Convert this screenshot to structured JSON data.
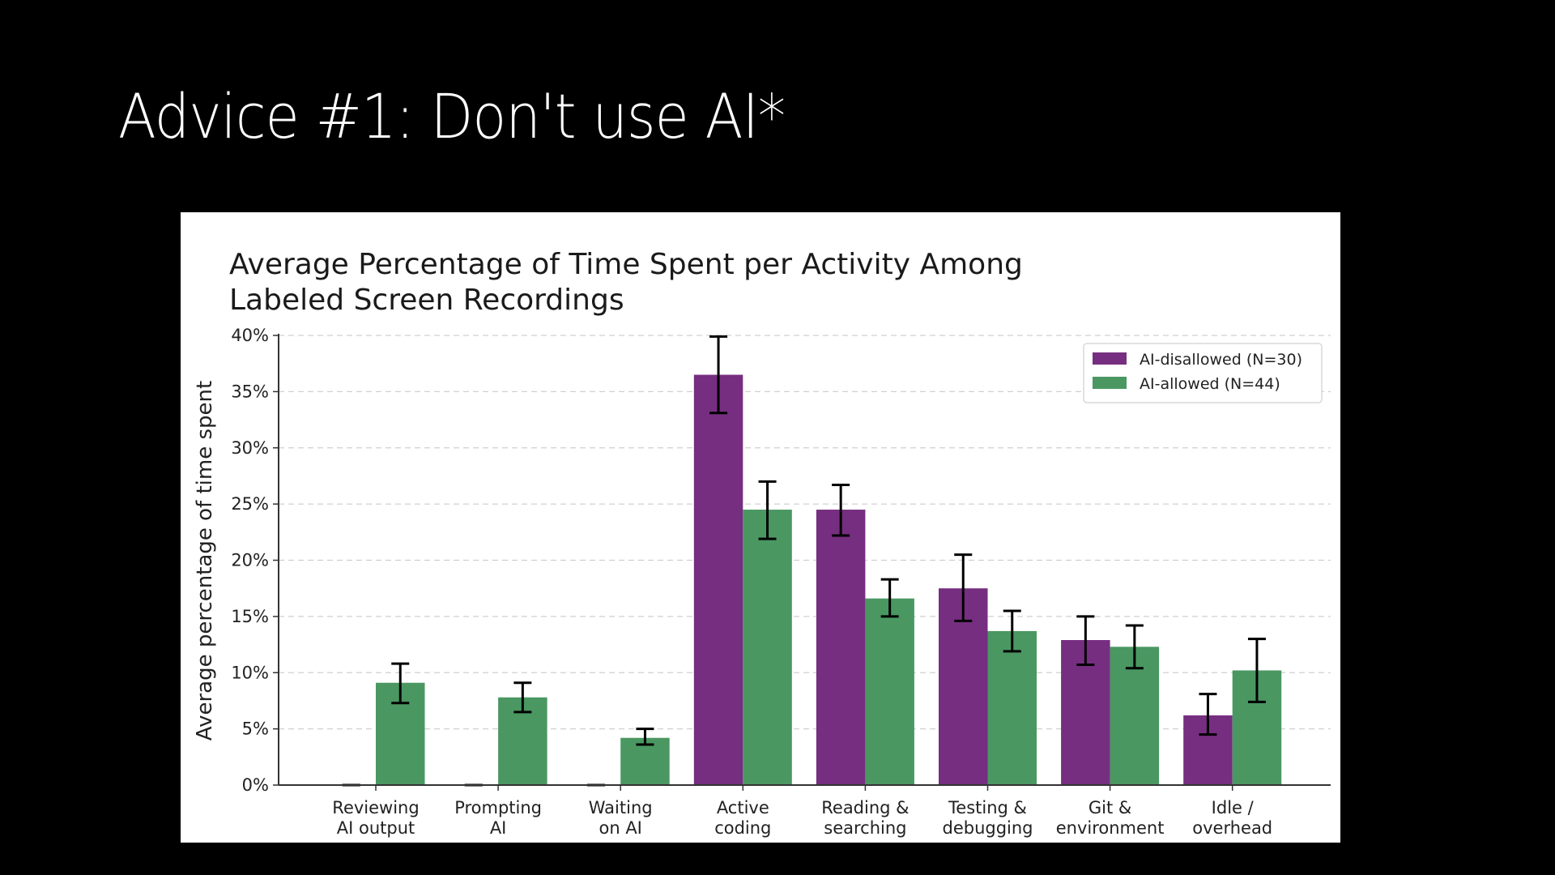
{
  "slide": {
    "title": "Advice #1: Don't use AI*"
  },
  "colors": {
    "background": "#000000",
    "panel": "#ffffff",
    "ai_disallowed": "#762E80",
    "ai_allowed": "#4A9762",
    "error_bar": "#000000",
    "grid": "#d0d0d0"
  },
  "chart_data": {
    "type": "bar",
    "title": "Average Percentage of Time Spent per Activity Among Labeled Screen Recordings",
    "title_lines": [
      "Average Percentage of Time Spent per Activity Among",
      "Labeled Screen Recordings"
    ],
    "xlabel": "",
    "ylabel": "Average percentage of time spent",
    "ylim": [
      0,
      40
    ],
    "yticks": [
      0,
      5,
      10,
      15,
      20,
      25,
      30,
      35,
      40
    ],
    "ytick_labels": [
      "0%",
      "5%",
      "10%",
      "15%",
      "20%",
      "25%",
      "30%",
      "35%",
      "40%"
    ],
    "grid": "horizontal-dashed",
    "legend_position": "top-right",
    "categories": [
      [
        "Reviewing",
        "AI output"
      ],
      [
        "Prompting",
        "AI"
      ],
      [
        "Waiting",
        "on AI"
      ],
      [
        "Active",
        "coding"
      ],
      [
        "Reading &",
        "searching"
      ],
      [
        "Testing &",
        "debugging"
      ],
      [
        "Git &",
        "environment"
      ],
      [
        "Idle /",
        "overhead"
      ]
    ],
    "series": [
      {
        "name": "AI-disallowed (N=30)",
        "color": "#762E80",
        "values": [
          0,
          0,
          0,
          36.5,
          24.5,
          17.5,
          12.9,
          6.2
        ],
        "err_low": [
          0,
          0,
          0,
          33.1,
          22.2,
          14.6,
          10.7,
          4.5
        ],
        "err_high": [
          0,
          0,
          0,
          39.9,
          26.7,
          20.5,
          15.0,
          8.1
        ]
      },
      {
        "name": "AI-allowed (N=44)",
        "color": "#4A9762",
        "values": [
          9.1,
          7.8,
          4.2,
          24.5,
          16.6,
          13.7,
          12.3,
          10.2
        ],
        "err_low": [
          7.3,
          6.5,
          3.6,
          21.9,
          15.0,
          11.9,
          10.4,
          7.4
        ],
        "err_high": [
          10.8,
          9.1,
          5.0,
          27.0,
          18.3,
          15.5,
          14.2,
          13.0
        ]
      }
    ]
  }
}
